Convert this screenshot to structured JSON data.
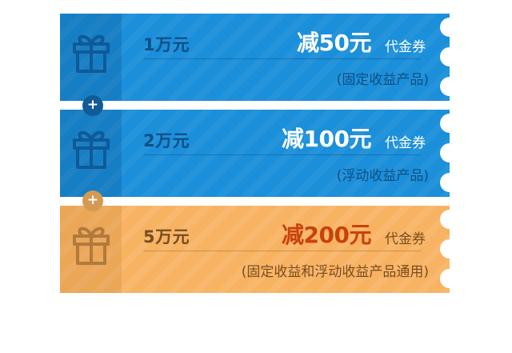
{
  "coupons": [
    {
      "amount": "1万元",
      "discount": "减50元",
      "type": "代金券",
      "note": "(固定收益产品)",
      "theme": "blue"
    },
    {
      "amount": "2万元",
      "discount": "减100元",
      "type": "代金券",
      "note": "(浮动收益产品)",
      "theme": "blue"
    },
    {
      "amount": "5万元",
      "discount": "减200元",
      "type": "代金券",
      "note": "(固定收益和浮动收益产品通用)",
      "theme": "orange"
    }
  ],
  "connectors": [
    {
      "symbol": "+"
    },
    {
      "symbol": "+"
    }
  ],
  "colors": {
    "blue": "#1b8fd9",
    "blue_text": "#0e4f86",
    "orange": "#f7b262",
    "orange_accent": "#c8420c"
  },
  "icons": {
    "gift": "gift-icon"
  }
}
